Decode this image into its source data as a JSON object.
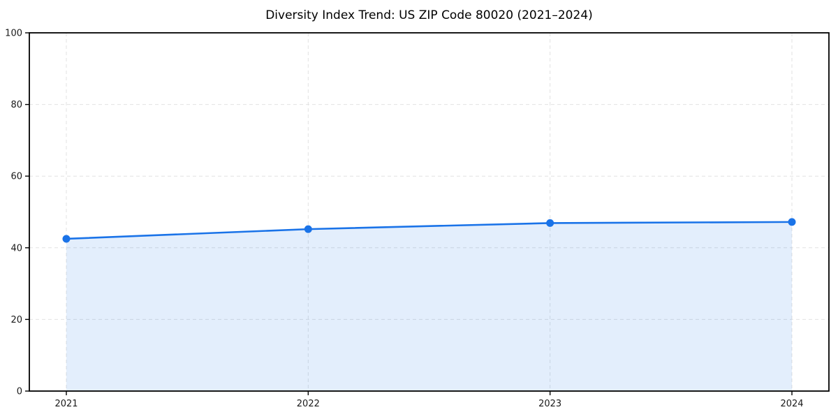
{
  "page": {
    "background_color": "#ffffff"
  },
  "chart_data": {
    "type": "line",
    "title": "Diversity Index Trend: US ZIP Code 80020 (2021–2024)",
    "categories": [
      "2021",
      "2022",
      "2023",
      "2024"
    ],
    "series": [
      {
        "name": "Diversity Index",
        "values": [
          42.5,
          45.2,
          46.9,
          47.2
        ]
      }
    ],
    "xlabel": "",
    "ylabel": "",
    "ylim": [
      0,
      100
    ],
    "yticks": [
      0,
      20,
      40,
      60,
      80,
      100
    ],
    "grid": true,
    "grid_style": "dashed",
    "legend_position": "none",
    "area_fill": true,
    "markers": true,
    "style": {
      "line_color": "#1a73e8",
      "marker_color": "#1a73e8",
      "fill_color": "#1a73e8",
      "fill_opacity": 0.12,
      "grid_color": "#e2e2e2",
      "grid_dash": "5 4",
      "spine_color": "#000000",
      "tick_label_color": "#1a1a1a",
      "title_color": "#000000"
    }
  }
}
